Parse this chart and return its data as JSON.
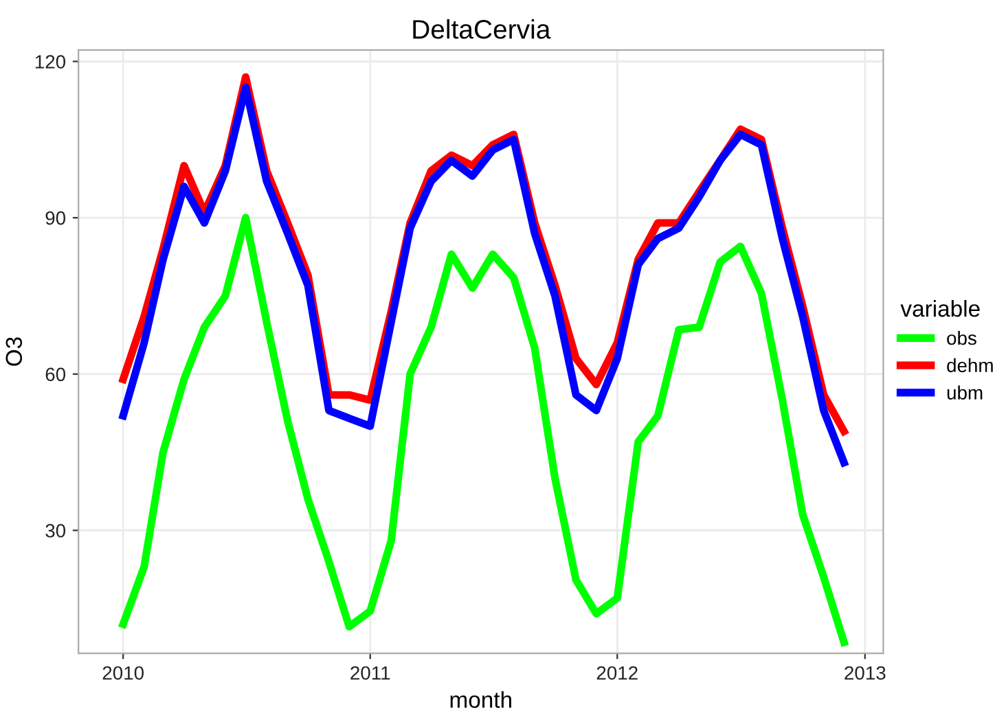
{
  "chart_data": {
    "type": "line",
    "title": "DeltaCervia",
    "xlabel": "month",
    "ylabel": "O3",
    "legend_title": "variable",
    "x": [
      "2010-01",
      "2010-02",
      "2010-03",
      "2010-04",
      "2010-05",
      "2010-06",
      "2010-07",
      "2010-08",
      "2010-09",
      "2010-10",
      "2010-11",
      "2010-12",
      "2011-01",
      "2011-02",
      "2011-03",
      "2011-04",
      "2011-05",
      "2011-06",
      "2011-07",
      "2011-08",
      "2011-09",
      "2011-10",
      "2011-11",
      "2011-12",
      "2012-01",
      "2012-02",
      "2012-03",
      "2012-04",
      "2012-05",
      "2012-06",
      "2012-07",
      "2012-08",
      "2012-09",
      "2012-10",
      "2012-11",
      "2012-12"
    ],
    "series": [
      {
        "name": "obs",
        "color": "#00ff00",
        "values": [
          12,
          23,
          45,
          59,
          69,
          75,
          90,
          70,
          51,
          36,
          24,
          11.5,
          14.5,
          28,
          60,
          69,
          83,
          76.5,
          83,
          78.5,
          65,
          40,
          20.5,
          14,
          17,
          47,
          52,
          68.5,
          69,
          81.5,
          84.5,
          75.5,
          55,
          33,
          21,
          8.5
        ]
      },
      {
        "name": "dehm",
        "color": "#ff0000",
        "values": [
          59,
          71,
          84,
          100,
          91,
          100,
          117,
          99,
          89,
          79,
          56,
          56,
          55,
          72,
          89,
          99,
          102,
          100,
          104,
          106,
          89,
          77,
          63,
          58,
          66,
          82,
          89,
          89,
          95,
          101,
          107,
          105,
          88,
          73,
          56,
          49
        ]
      },
      {
        "name": "ubm",
        "color": "#0000ff",
        "values": [
          52,
          66,
          82,
          96,
          89,
          99,
          115,
          97,
          87,
          77,
          53,
          51.5,
          50,
          70,
          88,
          97,
          101,
          98,
          103,
          105,
          87,
          75,
          56,
          53,
          63,
          81,
          86,
          88,
          94,
          101,
          106,
          104,
          86,
          71,
          53,
          43
        ]
      }
    ],
    "xlim": [
      "2009-10-27",
      "2013-01-28"
    ],
    "xticks": [
      {
        "value": "2010-01-01",
        "label": "2010"
      },
      {
        "value": "2011-01-01",
        "label": "2011"
      },
      {
        "value": "2012-01-01",
        "label": "2012"
      },
      {
        "value": "2013-01-01",
        "label": "2013"
      }
    ],
    "ylim": [
      6.4,
      122.2
    ],
    "yticks": [
      30,
      60,
      90,
      120
    ],
    "grid": true,
    "legend": "right",
    "marker": "none",
    "line_style": "solid"
  }
}
